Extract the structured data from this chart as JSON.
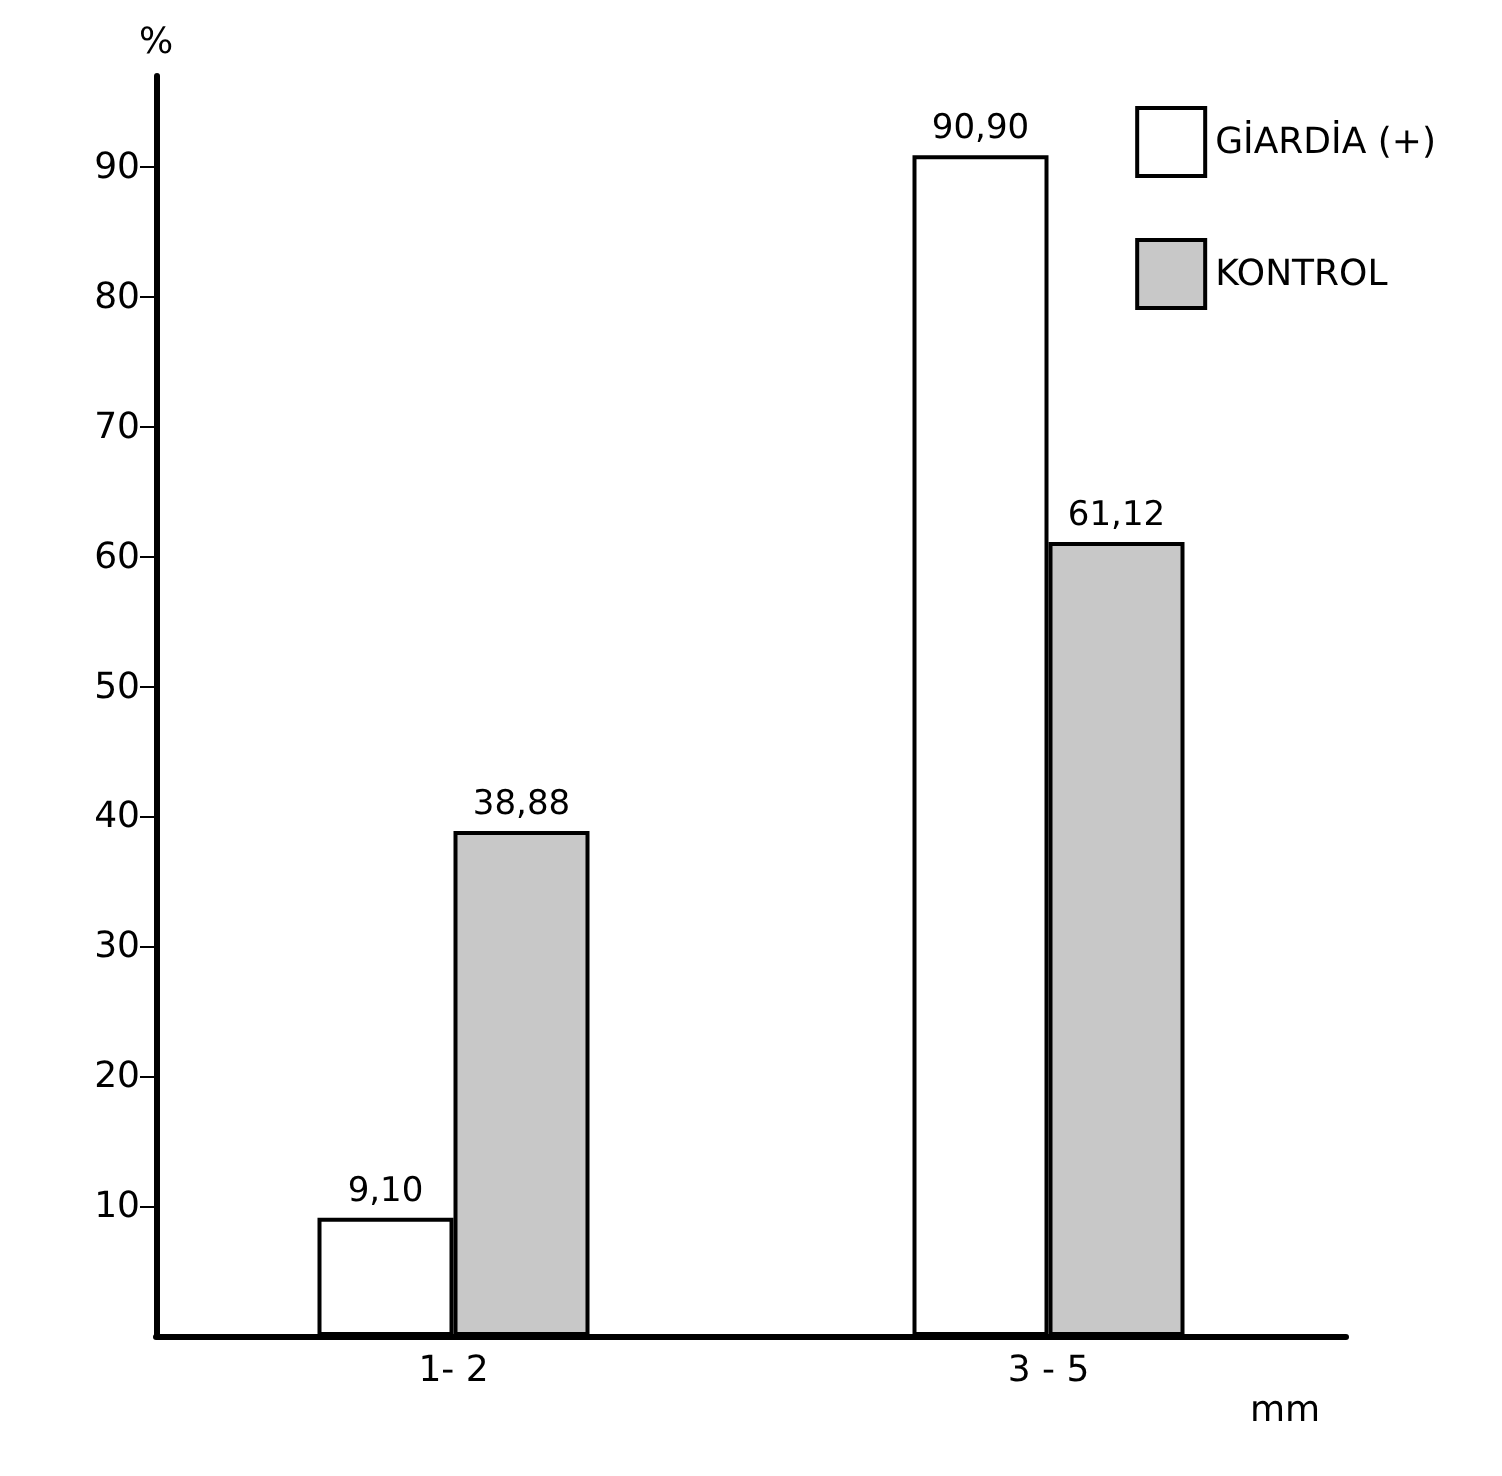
{
  "chart_data": {
    "type": "bar",
    "ylabel": "%",
    "xlabel": "mm",
    "categories": [
      "1- 2",
      "3 - 5"
    ],
    "series": [
      {
        "name": "GİARDİA (+)",
        "color": "#ffffff",
        "values": [
          9.1,
          90.9
        ],
        "value_labels": [
          "9,10",
          "90,90"
        ]
      },
      {
        "name": "KONTROL",
        "color": "#c8c8c8",
        "values": [
          38.88,
          61.12
        ],
        "value_labels": [
          "38,88",
          "61,12"
        ]
      }
    ],
    "ylim": [
      0,
      97
    ],
    "yticks": [
      10,
      20,
      30,
      40,
      50,
      60,
      70,
      80,
      90
    ],
    "grid": false,
    "legend": "top right"
  }
}
